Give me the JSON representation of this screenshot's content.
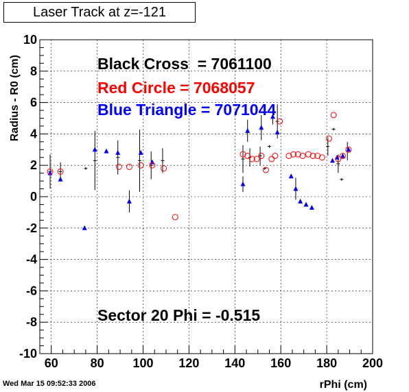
{
  "title": "Laser Track at z=-121",
  "timestamp": "Wed Mar 15 09:52:33 2006",
  "chart_data": {
    "type": "scatter",
    "xlabel": "rPhi (cm)",
    "ylabel": "Radius - R0 (cm)",
    "xlim": [
      55,
      200
    ],
    "ylim": [
      -10,
      10
    ],
    "xticks": [
      60,
      80,
      100,
      120,
      140,
      160,
      180,
      200
    ],
    "yticks": [
      -10,
      -8,
      -6,
      -4,
      -2,
      0,
      2,
      4,
      6,
      8,
      10
    ],
    "grid": true,
    "annotations": [
      {
        "text": "Black Cross  = 7061100",
        "color": "#000000"
      },
      {
        "text": "Red Circle = 7068057",
        "color": "#ff0000"
      },
      {
        "text": "Blue Triangle = 7071044",
        "color": "#0000ff"
      },
      {
        "text": "Sector 20 Phi = -0.515",
        "color": "#000000"
      }
    ],
    "series": [
      {
        "name": "Black Cross  = 7061100",
        "color": "#000000",
        "marker": "cross",
        "points": [
          [
            59.5,
            1.6,
            1.0
          ],
          [
            64.0,
            1.6,
            0.5
          ],
          [
            75.0,
            1.8,
            0
          ],
          [
            79.0,
            2.3,
            1.8
          ],
          [
            89.0,
            2.5,
            1.0
          ],
          [
            98.5,
            2.3,
            1.9
          ],
          [
            103.5,
            2.0,
            0.8
          ],
          [
            108.5,
            2.3,
            0.7
          ],
          [
            143.5,
            2.4,
            0.8
          ],
          [
            146.5,
            2.5,
            0.5
          ],
          [
            151.0,
            2.6,
            0.5
          ],
          [
            153.0,
            1.8,
            0
          ],
          [
            155.0,
            3.2,
            0
          ],
          [
            158.5,
            4.8,
            1.0
          ],
          [
            180.5,
            3.2,
            0.5
          ],
          [
            183.0,
            4.3,
            0
          ],
          [
            185.0,
            2.1,
            0.5
          ],
          [
            186.5,
            1.1,
            0
          ],
          [
            189.0,
            2.9,
            0.5
          ]
        ]
      },
      {
        "name": "Red Circle = 7068057",
        "color": "#ff0000",
        "marker": "circle",
        "points": [
          [
            59.5,
            1.6
          ],
          [
            64.0,
            1.6
          ],
          [
            89.5,
            1.9
          ],
          [
            94.0,
            1.9
          ],
          [
            99.0,
            2.0
          ],
          [
            104.0,
            2.0
          ],
          [
            109.0,
            1.8
          ],
          [
            114.0,
            -1.3
          ],
          [
            143.5,
            2.7
          ],
          [
            145.5,
            2.6
          ],
          [
            147.5,
            2.4
          ],
          [
            149.5,
            2.4
          ],
          [
            151.5,
            2.6
          ],
          [
            153.5,
            1.7
          ],
          [
            156.0,
            2.4
          ],
          [
            157.5,
            2.6
          ],
          [
            159.5,
            4.8
          ],
          [
            163.5,
            2.6
          ],
          [
            165.5,
            2.7
          ],
          [
            167.5,
            2.7
          ],
          [
            169.5,
            2.6
          ],
          [
            172.0,
            2.7
          ],
          [
            174.0,
            2.6
          ],
          [
            176.0,
            2.6
          ],
          [
            178.0,
            2.5
          ],
          [
            181.0,
            3.7
          ],
          [
            183.0,
            5.2
          ],
          [
            185.0,
            2.4
          ],
          [
            187.0,
            2.6
          ],
          [
            189.5,
            3.0
          ]
        ]
      },
      {
        "name": "Blue Triangle = 7071044",
        "color": "#0000ff",
        "marker": "triangle",
        "points": [
          [
            59.5,
            1.5,
            0
          ],
          [
            64.0,
            1.1,
            0
          ],
          [
            74.5,
            -2.0,
            0
          ],
          [
            79.0,
            3.0,
            0
          ],
          [
            84.0,
            2.9,
            0
          ],
          [
            89.0,
            2.8,
            0
          ],
          [
            94.0,
            -0.3,
            0.7
          ],
          [
            99.0,
            2.8,
            0
          ],
          [
            104.0,
            2.2,
            0
          ],
          [
            143.5,
            0.8,
            0.5
          ],
          [
            145.5,
            4.2,
            0.7
          ],
          [
            151.5,
            4.4,
            0.8
          ],
          [
            156.5,
            5.1,
            0.5
          ],
          [
            158.5,
            4.1,
            0
          ],
          [
            164.5,
            1.3,
            0
          ],
          [
            166.5,
            0.5,
            0.7
          ],
          [
            168.5,
            -0.3,
            0
          ],
          [
            171.0,
            -0.5,
            0
          ],
          [
            173.5,
            -0.7,
            0
          ],
          [
            182.5,
            2.3,
            0
          ],
          [
            184.5,
            2.5,
            0
          ],
          [
            187.0,
            2.6,
            0
          ],
          [
            189.5,
            3.0,
            0
          ]
        ]
      }
    ]
  }
}
